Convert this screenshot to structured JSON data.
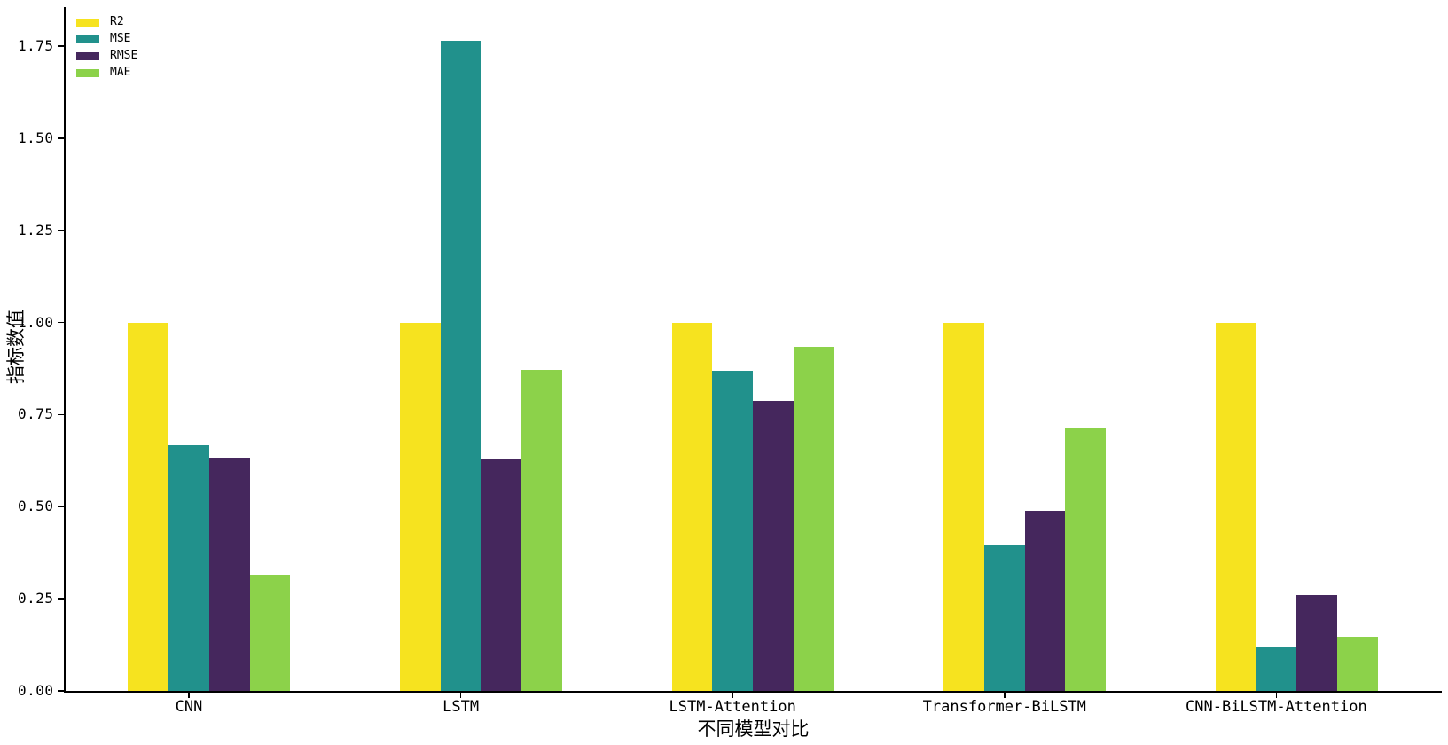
{
  "chart_data": {
    "type": "bar",
    "title": "",
    "xlabel": "不同模型对比",
    "ylabel": "指标数值",
    "categories": [
      "CNN",
      "LSTM",
      "LSTM-Attention",
      "Transformer-BiLSTM",
      "CNN-BiLSTM-Attention"
    ],
    "series": [
      {
        "name": "R2",
        "color": "#F6E31F",
        "values": [
          1.0,
          1.0,
          1.0,
          1.0,
          1.0
        ]
      },
      {
        "name": "MSE",
        "color": "#21918C",
        "values": [
          0.667,
          1.765,
          0.868,
          0.397,
          0.118
        ]
      },
      {
        "name": "RMSE",
        "color": "#45275D",
        "values": [
          0.632,
          0.629,
          0.786,
          0.488,
          0.26
        ]
      },
      {
        "name": "MAE",
        "color": "#8CD24A",
        "values": [
          0.316,
          0.871,
          0.933,
          0.713,
          0.147
        ]
      }
    ],
    "ylim": [
      0.0,
      1.85
    ],
    "yticks": {
      "values": [
        0.0,
        0.25,
        0.5,
        0.75,
        1.0,
        1.25,
        1.5,
        1.75
      ],
      "labels": [
        "0.00",
        "0.25",
        "0.50",
        "0.75",
        "1.00",
        "1.25",
        "1.50",
        "1.75"
      ]
    },
    "legend": {
      "position": "upper-left",
      "entries": [
        "R2",
        "MSE",
        "RMSE",
        "MAE"
      ]
    },
    "grid": false,
    "axis_color": "#000000",
    "background_color": "#ffffff"
  }
}
